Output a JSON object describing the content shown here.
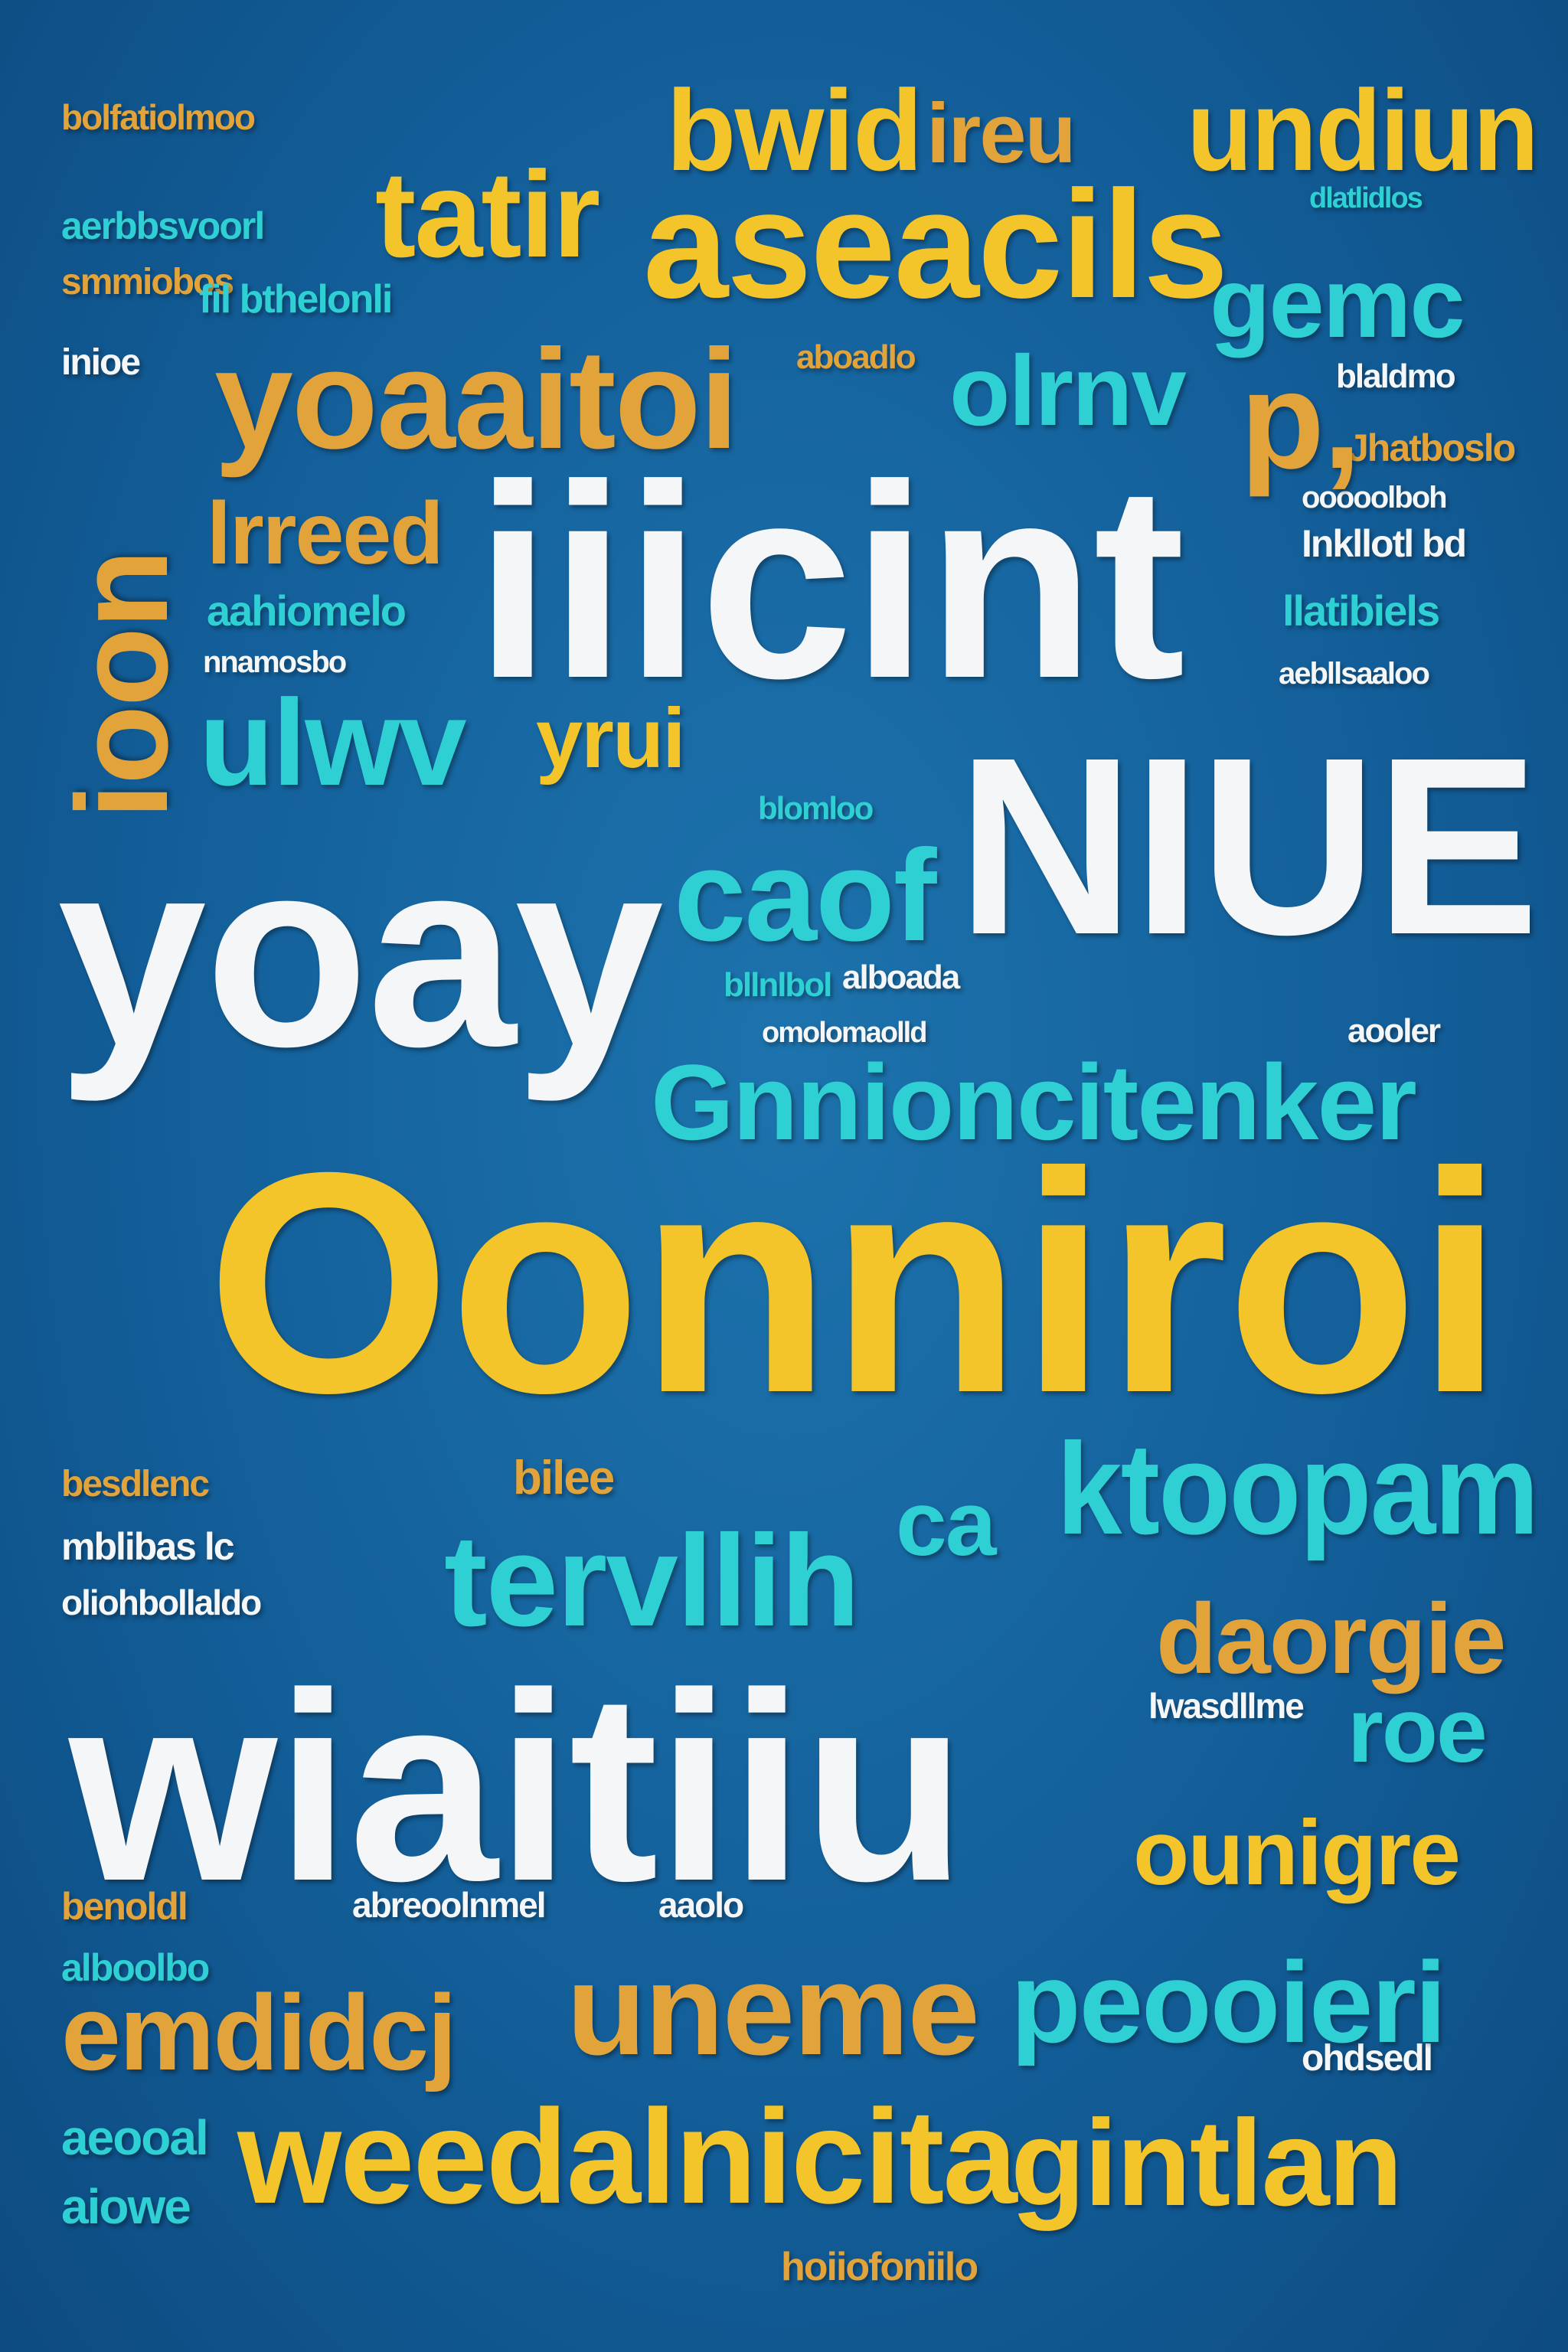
{
  "words": [
    {
      "id": "w-bwid",
      "text": "bwid",
      "color": "#f3c52a"
    },
    {
      "id": "w-ireu",
      "text": "ireu",
      "color": "#e2a33a"
    },
    {
      "id": "w-undiun",
      "text": "undiun",
      "color": "#f3c52a"
    },
    {
      "id": "w-tatir",
      "text": "tatir",
      "color": "#f3c52a"
    },
    {
      "id": "w-aseacils",
      "text": "aseacils",
      "color": "#f3c52a"
    },
    {
      "id": "w-gemc",
      "text": "gemc",
      "color": "#2fd0d4"
    },
    {
      "id": "w-yoaaitoi",
      "text": "yoaaitoi",
      "color": "#e2a33a"
    },
    {
      "id": "w-olrnv",
      "text": "olrnv",
      "color": "#2fd0d4"
    },
    {
      "id": "w-p",
      "text": "p,",
      "color": "#e2a33a"
    },
    {
      "id": "w-lreed",
      "text": "lrreed",
      "color": "#e2a33a"
    },
    {
      "id": "w-iiicint",
      "text": "iiicint",
      "color": "#f4f6f8"
    },
    {
      "id": "w-ioon",
      "text": "ioon",
      "color": "#e2a33a"
    },
    {
      "id": "w-ulwv",
      "text": "ulwv",
      "color": "#2fd0d4"
    },
    {
      "id": "w-yrui",
      "text": "yrui",
      "color": "#f3c52a"
    },
    {
      "id": "w-niue",
      "text": "NIUE",
      "color": "#f4f6f8"
    },
    {
      "id": "w-yoay",
      "text": "yoay",
      "color": "#f4f6f8"
    },
    {
      "id": "w-caof",
      "text": "caof",
      "color": "#2fd0d4"
    },
    {
      "id": "w-gnnioncitenker",
      "text": "Gnnioncitenker",
      "color": "#2fd0d4"
    },
    {
      "id": "w-oonniroi",
      "text": "Oonniroi",
      "color": "#f3c52a"
    },
    {
      "id": "w-tervllih",
      "text": "tervllih",
      "color": "#2fd0d4"
    },
    {
      "id": "w-ca",
      "text": "ca",
      "color": "#2fd0d4"
    },
    {
      "id": "w-ktoopam",
      "text": "ktoopam",
      "color": "#2fd0d4"
    },
    {
      "id": "w-daorgie",
      "text": "daorgie",
      "color": "#e2a33a"
    },
    {
      "id": "w-wiaitiiu",
      "text": "wiaitiiu",
      "color": "#f4f6f8"
    },
    {
      "id": "w-roe",
      "text": "roe",
      "color": "#2fd0d4"
    },
    {
      "id": "w-ounigre",
      "text": "ounigre",
      "color": "#f3c52a"
    },
    {
      "id": "w-emdidcj",
      "text": "emdidcj",
      "color": "#e2a33a"
    },
    {
      "id": "w-uneme",
      "text": "uneme",
      "color": "#e2a33a"
    },
    {
      "id": "w-peooieri",
      "text": "peooieri",
      "color": "#2fd0d4"
    },
    {
      "id": "w-weedalnicita",
      "text": "weedalnicita",
      "color": "#f3c52a"
    },
    {
      "id": "w-gintlan",
      "text": "gintlan",
      "color": "#f3c52a"
    }
  ],
  "filler": [
    {
      "id": "f-1",
      "text": "bolfatiolmoo",
      "color": "#f3c52a"
    },
    {
      "id": "f-2",
      "text": "aerbbsvoorl",
      "color": "#2fd0d4"
    },
    {
      "id": "f-3",
      "text": "smmiobos",
      "color": "#e2a33a"
    },
    {
      "id": "f-4",
      "text": "inioe",
      "color": "#f4f6f8"
    },
    {
      "id": "f-5",
      "text": "fil bthelonli",
      "color": "#2fd0d4"
    },
    {
      "id": "f-6",
      "text": "aahiomelo",
      "color": "#2fd0d4"
    },
    {
      "id": "f-7",
      "text": "nnamosbo",
      "color": "#f4f6f8"
    },
    {
      "id": "f-8",
      "text": "aboadlo",
      "color": "#e2a33a"
    },
    {
      "id": "f-9",
      "text": "dlatlidlos",
      "color": "#2fd0d4"
    },
    {
      "id": "f-10",
      "text": "blaldmo",
      "color": "#f4f6f8"
    },
    {
      "id": "f-11",
      "text": "ooooolboh",
      "color": "#f4f6f8"
    },
    {
      "id": "f-12",
      "text": "Jhatboslo",
      "color": "#e2a33a"
    },
    {
      "id": "f-13",
      "text": "Inkllotl bd",
      "color": "#f4f6f8"
    },
    {
      "id": "f-14",
      "text": "llatibiels",
      "color": "#2fd0d4"
    },
    {
      "id": "f-15",
      "text": "aebllsaaloo",
      "color": "#f4f6f8"
    },
    {
      "id": "f-16",
      "text": "blomloo",
      "color": "#2fd0d4"
    },
    {
      "id": "f-17",
      "text": "alboada",
      "color": "#f4f6f8"
    },
    {
      "id": "f-18",
      "text": "bllnlbol",
      "color": "#2fd0d4"
    },
    {
      "id": "f-19",
      "text": "omolomaolld",
      "color": "#f4f6f8"
    },
    {
      "id": "f-20",
      "text": "aooler",
      "color": "#f4f6f8"
    },
    {
      "id": "f-21",
      "text": "besdlenc",
      "color": "#e2a33a"
    },
    {
      "id": "f-22",
      "text": "bilee",
      "color": "#e2a33a"
    },
    {
      "id": "f-23",
      "text": "mblibas lc",
      "color": "#f4f6f8"
    },
    {
      "id": "f-24",
      "text": "oliohbollaldo",
      "color": "#f4f6f8"
    },
    {
      "id": "f-25",
      "text": "lwasdllme",
      "color": "#f4f6f8"
    },
    {
      "id": "f-26",
      "text": "benoldl",
      "color": "#e2a33a"
    },
    {
      "id": "f-27",
      "text": "abreoolnmel",
      "color": "#f4f6f8"
    },
    {
      "id": "f-28",
      "text": "aaolo",
      "color": "#f4f6f8"
    },
    {
      "id": "f-29",
      "text": "alboolbo",
      "color": "#2fd0d4"
    },
    {
      "id": "f-30",
      "text": "ohdsedl",
      "color": "#f4f6f8"
    },
    {
      "id": "f-31",
      "text": "hoiiofoniilo",
      "color": "#e2a33a"
    },
    {
      "id": "f-32",
      "text": "aiowe",
      "color": "#2fd0d4"
    },
    {
      "id": "f-33",
      "text": "aeooal",
      "color": "#2fd0d4"
    }
  ]
}
